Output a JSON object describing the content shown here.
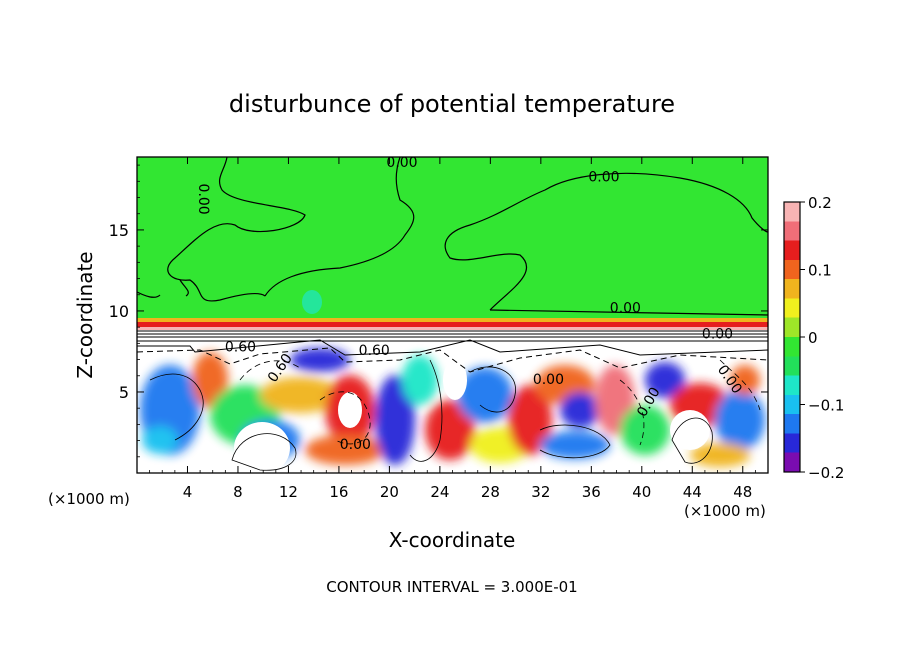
{
  "chart_data": {
    "type": "heatmap",
    "title": "disturbunce of potential temperature",
    "xlabel": "X-coordinate",
    "ylabel": "Z-coordinate",
    "x_unit": "(×1000 m)",
    "y_unit": "(×1000 m)",
    "xlim": [
      0,
      50
    ],
    "ylim": [
      0,
      19.5
    ],
    "x_ticks": [
      4,
      8,
      12,
      16,
      20,
      24,
      28,
      32,
      36,
      40,
      44,
      48
    ],
    "x_tick_labels": [
      "4",
      "8",
      "12",
      "16",
      "20",
      "24",
      "28",
      "32",
      "36",
      "40",
      "44",
      "48"
    ],
    "y_ticks": [
      5,
      10,
      15
    ],
    "y_tick_labels": [
      "5",
      "10",
      "15"
    ],
    "colorbar": {
      "range": [
        -0.2,
        0.2
      ],
      "ticks": [
        0.2,
        0.1,
        0,
        -0.1,
        -0.2
      ],
      "tick_labels": [
        "0.2",
        "0.1",
        "0",
        "−0.1",
        "−0.2"
      ],
      "colors": [
        "#7a0cb0",
        "#2828d8",
        "#1e78f0",
        "#19c0f0",
        "#1ee6c8",
        "#22e05a",
        "#32e632",
        "#9ee628",
        "#f0f01e",
        "#f0b41e",
        "#f0641e",
        "#e61e1e",
        "#f06e78",
        "#f8b4b4"
      ]
    },
    "contour_labels": [
      {
        "text": "0.00",
        "x": 21,
        "z": 19.2
      },
      {
        "text": "0.00",
        "x": 5.3,
        "z": 16.9,
        "rotate": 90
      },
      {
        "text": "0.00",
        "x": 37,
        "z": 18.3
      },
      {
        "text": "0.00",
        "x": 38.7,
        "z": 10.2
      },
      {
        "text": "0.00",
        "x": 46,
        "z": 8.6
      },
      {
        "text": "0.60",
        "x": 8.2,
        "z": 7.8
      },
      {
        "text": "0.60",
        "x": 18.8,
        "z": 7.6
      },
      {
        "text": "0.60",
        "x": 11.3,
        "z": 6.5,
        "rotate": -55
      },
      {
        "text": "0.00",
        "x": 32.6,
        "z": 5.8
      },
      {
        "text": "0.00",
        "x": 47,
        "z": 5.8,
        "rotate": 55
      },
      {
        "text": "0.00",
        "x": 17.3,
        "z": 1.8
      },
      {
        "text": "0.00",
        "x": 40.5,
        "z": 4.4,
        "rotate": -60
      }
    ],
    "annotation": "CONTOUR INTERVAL = 3.000E-01"
  }
}
